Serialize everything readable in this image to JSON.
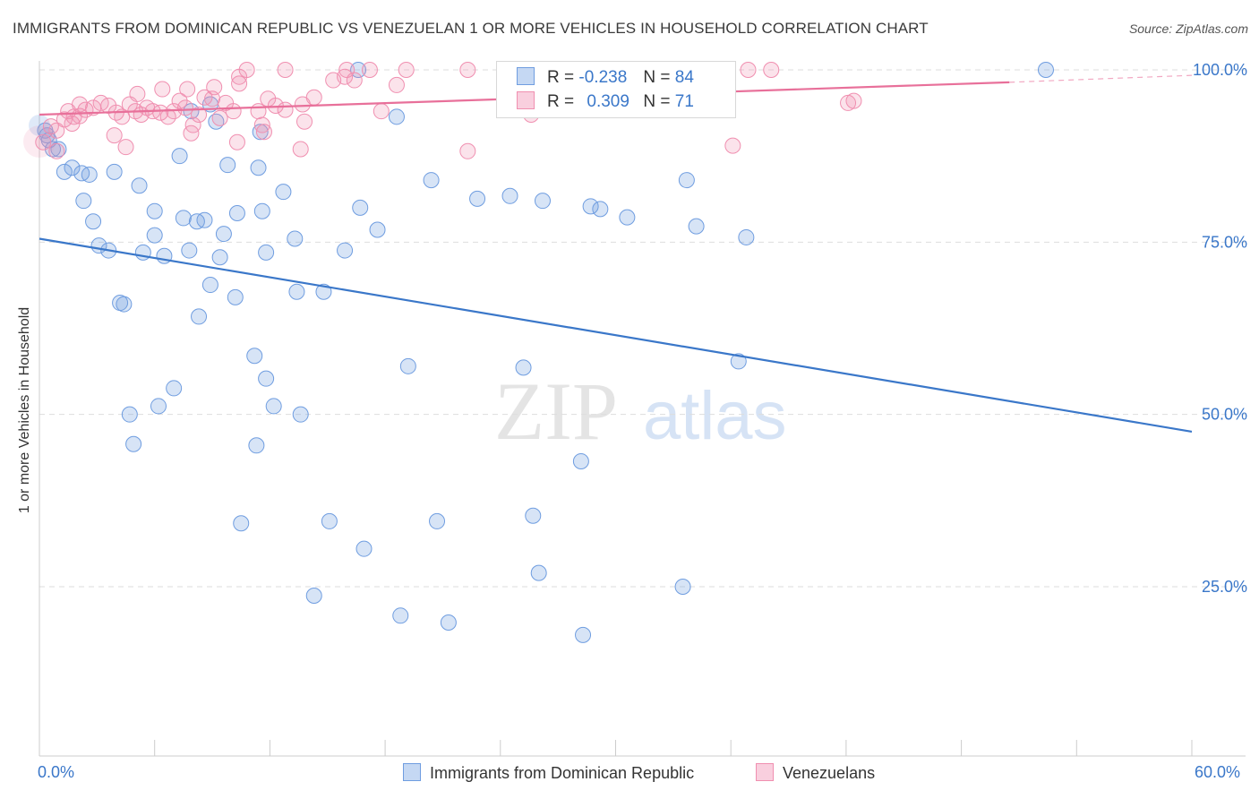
{
  "title": "IMMIGRANTS FROM DOMINICAN REPUBLIC VS VENEZUELAN 1 OR MORE VEHICLES IN HOUSEHOLD CORRELATION CHART",
  "source": "Source: ZipAtlas.com",
  "watermark": {
    "zip": "ZIP",
    "atlas": "atlas"
  },
  "legend": {
    "r_label": "R =",
    "n_label": "N =",
    "rows": [
      {
        "r": "-0.238",
        "n": "84"
      },
      {
        "r": "0.309",
        "n": "71"
      }
    ]
  },
  "chart_data": {
    "type": "scatter",
    "title": "IMMIGRANTS FROM DOMINICAN REPUBLIC VS VENEZUELAN 1 OR MORE VEHICLES IN HOUSEHOLD CORRELATION CHART",
    "xlabel": "",
    "ylabel": "1 or more Vehicles in Household",
    "xlim": [
      0,
      60
    ],
    "ylim": [
      0,
      104
    ],
    "x_tick_labels": [
      "0.0%",
      "60.0%"
    ],
    "y_tick_labels": [
      "25.0%",
      "50.0%",
      "75.0%",
      "100.0%"
    ],
    "y_ticks": [
      25,
      50,
      75,
      100
    ],
    "grid": true,
    "legend_position": "bottom",
    "colors": {
      "blue": "#6f9de0",
      "pink": "#f08fb0",
      "blue_line": "#3a77c9",
      "pink_line": "#e8709a",
      "axis_text": "#3a77c9"
    },
    "series": [
      {
        "name": "Immigrants from Dominican Republic",
        "color": "#6f9de0",
        "trend": {
          "x": [
            0,
            60
          ],
          "y": [
            75.5,
            47.5
          ]
        },
        "points": [
          [
            0.3,
            91.2
          ],
          [
            0.4,
            90.5
          ],
          [
            0.5,
            89.8
          ],
          [
            0.7,
            88.5
          ],
          [
            1.0,
            88.5
          ],
          [
            1.3,
            85.2
          ],
          [
            1.7,
            85.8
          ],
          [
            2.2,
            85.0
          ],
          [
            2.6,
            84.8
          ],
          [
            3.9,
            85.2
          ],
          [
            5.2,
            83.2
          ],
          [
            2.3,
            81.0
          ],
          [
            2.8,
            78.0
          ],
          [
            6.0,
            79.5
          ],
          [
            7.5,
            78.5
          ],
          [
            8.2,
            78.0
          ],
          [
            8.6,
            78.2
          ],
          [
            10.3,
            79.2
          ],
          [
            11.6,
            79.5
          ],
          [
            9.6,
            76.2
          ],
          [
            6.0,
            76.0
          ],
          [
            3.1,
            74.5
          ],
          [
            3.6,
            73.8
          ],
          [
            5.4,
            73.5
          ],
          [
            6.5,
            73.0
          ],
          [
            7.8,
            73.8
          ],
          [
            9.4,
            72.8
          ],
          [
            11.8,
            73.5
          ],
          [
            13.3,
            75.5
          ],
          [
            15.9,
            73.8
          ],
          [
            16.7,
            80.0
          ],
          [
            17.6,
            76.8
          ],
          [
            8.9,
            68.8
          ],
          [
            10.2,
            67.0
          ],
          [
            13.4,
            67.8
          ],
          [
            14.8,
            67.8
          ],
          [
            4.2,
            66.2
          ],
          [
            4.4,
            66.0
          ],
          [
            8.3,
            64.2
          ],
          [
            11.2,
            58.5
          ],
          [
            11.8,
            55.2
          ],
          [
            7.0,
            53.8
          ],
          [
            6.2,
            51.2
          ],
          [
            4.7,
            50.0
          ],
          [
            12.2,
            51.2
          ],
          [
            13.6,
            50.0
          ],
          [
            4.9,
            45.7
          ],
          [
            11.3,
            45.5
          ],
          [
            19.2,
            57.0
          ],
          [
            25.2,
            56.8
          ],
          [
            28.2,
            43.2
          ],
          [
            10.5,
            34.2
          ],
          [
            15.1,
            34.5
          ],
          [
            20.7,
            34.5
          ],
          [
            25.7,
            35.3
          ],
          [
            16.9,
            30.5
          ],
          [
            26.0,
            27.0
          ],
          [
            14.3,
            23.7
          ],
          [
            18.8,
            20.8
          ],
          [
            21.3,
            19.8
          ],
          [
            28.3,
            18.0
          ],
          [
            33.5,
            25.0
          ],
          [
            36.4,
            57.7
          ],
          [
            7.3,
            87.5
          ],
          [
            9.8,
            86.2
          ],
          [
            11.4,
            85.8
          ],
          [
            12.7,
            82.3
          ],
          [
            16.6,
            100.0
          ],
          [
            18.6,
            93.2
          ],
          [
            20.4,
            84.0
          ],
          [
            22.8,
            81.3
          ],
          [
            24.5,
            81.7
          ],
          [
            26.2,
            81.0
          ],
          [
            28.7,
            80.2
          ],
          [
            29.2,
            79.8
          ],
          [
            30.6,
            78.6
          ],
          [
            33.7,
            84.0
          ],
          [
            34.2,
            77.3
          ],
          [
            36.8,
            75.7
          ],
          [
            52.4,
            100.0
          ],
          [
            8.9,
            95.0
          ],
          [
            9.2,
            92.5
          ],
          [
            11.5,
            91.0
          ],
          [
            7.9,
            94.0
          ]
        ]
      },
      {
        "name": "Venezuelans",
        "color": "#f08fb0",
        "trend": {
          "x": [
            0,
            50.5
          ],
          "y": [
            93.5,
            98.2
          ]
        },
        "trend_dashed": {
          "x": [
            50.5,
            60
          ],
          "y": [
            98.2,
            99.2
          ]
        },
        "points": [
          [
            0.2,
            89.5
          ],
          [
            0.6,
            91.8
          ],
          [
            0.9,
            91.2
          ],
          [
            1.3,
            92.8
          ],
          [
            1.5,
            94.0
          ],
          [
            1.8,
            93.2
          ],
          [
            2.1,
            95.0
          ],
          [
            2.4,
            94.2
          ],
          [
            2.8,
            94.5
          ],
          [
            3.2,
            95.2
          ],
          [
            3.6,
            94.8
          ],
          [
            4.0,
            93.8
          ],
          [
            4.3,
            93.2
          ],
          [
            4.7,
            95.0
          ],
          [
            5.0,
            94.0
          ],
          [
            5.3,
            93.5
          ],
          [
            5.6,
            94.5
          ],
          [
            5.9,
            94.0
          ],
          [
            6.3,
            93.8
          ],
          [
            6.7,
            93.2
          ],
          [
            7.0,
            94.0
          ],
          [
            7.3,
            95.5
          ],
          [
            7.6,
            94.5
          ],
          [
            8.0,
            92.0
          ],
          [
            8.3,
            93.5
          ],
          [
            8.6,
            96.0
          ],
          [
            9.0,
            95.8
          ],
          [
            9.4,
            93.0
          ],
          [
            9.7,
            95.2
          ],
          [
            10.1,
            94.0
          ],
          [
            6.4,
            97.2
          ],
          [
            7.7,
            97.2
          ],
          [
            9.1,
            97.5
          ],
          [
            10.4,
            99.0
          ],
          [
            11.4,
            94.0
          ],
          [
            11.9,
            95.8
          ],
          [
            12.3,
            94.8
          ],
          [
            12.8,
            94.2
          ],
          [
            13.7,
            95.0
          ],
          [
            14.3,
            96.0
          ],
          [
            15.3,
            98.5
          ],
          [
            15.9,
            99.0
          ],
          [
            16.4,
            98.5
          ],
          [
            17.2,
            100.0
          ],
          [
            18.6,
            97.8
          ],
          [
            22.3,
            88.2
          ],
          [
            22.3,
            100.0
          ],
          [
            25.6,
            93.5
          ],
          [
            36.1,
            89.0
          ],
          [
            36.9,
            100.0
          ],
          [
            38.1,
            100.0
          ],
          [
            42.1,
            95.2
          ],
          [
            42.4,
            95.5
          ],
          [
            2.1,
            93.3
          ],
          [
            3.9,
            90.5
          ],
          [
            4.5,
            88.8
          ],
          [
            7.9,
            90.8
          ],
          [
            10.3,
            89.5
          ],
          [
            11.7,
            91.0
          ],
          [
            13.6,
            88.5
          ],
          [
            10.8,
            100.0
          ],
          [
            12.8,
            100.0
          ],
          [
            16.0,
            100.0
          ],
          [
            19.1,
            100.0
          ],
          [
            0.9,
            88.2
          ],
          [
            1.7,
            92.2
          ],
          [
            5.1,
            96.5
          ],
          [
            10.4,
            98.0
          ],
          [
            11.6,
            92.0
          ],
          [
            13.8,
            92.5
          ],
          [
            17.8,
            94.0
          ]
        ]
      }
    ]
  },
  "bottom_legend": [
    {
      "label": "Immigrants from Dominican Republic"
    },
    {
      "label": "Venezuelans"
    }
  ]
}
